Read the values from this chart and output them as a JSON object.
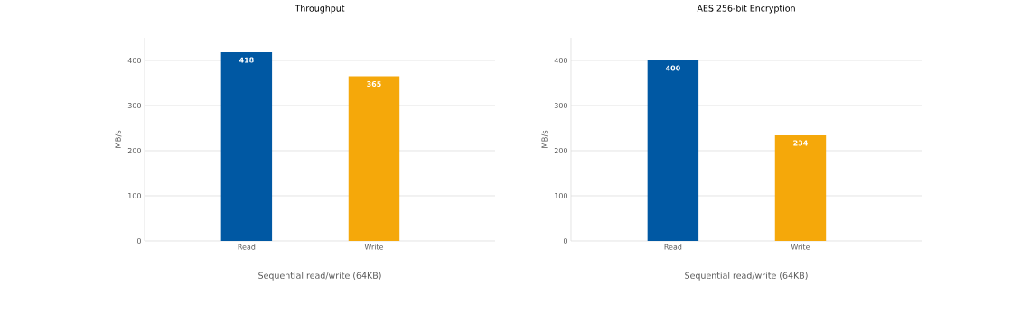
{
  "chart_data": [
    {
      "type": "bar",
      "title": "Throughput",
      "ylabel": "MB/s",
      "xlabel": "Sequential read/write (64KB)",
      "categories": [
        "Read",
        "Write"
      ],
      "values": [
        418,
        365
      ],
      "colors": [
        "#0058a3",
        "#f5a80a"
      ],
      "ylim": [
        0,
        450
      ],
      "yticks": [
        0,
        100,
        200,
        300,
        400
      ],
      "grid": "y",
      "data_labels": true
    },
    {
      "type": "bar",
      "title": "AES 256-bit Encryption",
      "ylabel": "MB/s",
      "xlabel": "Sequential read/write (64KB)",
      "categories": [
        "Read",
        "Write"
      ],
      "values": [
        400,
        234
      ],
      "colors": [
        "#0058a3",
        "#f5a80a"
      ],
      "ylim": [
        0,
        450
      ],
      "yticks": [
        0,
        100,
        200,
        300,
        400
      ],
      "grid": "y",
      "data_labels": true
    }
  ]
}
